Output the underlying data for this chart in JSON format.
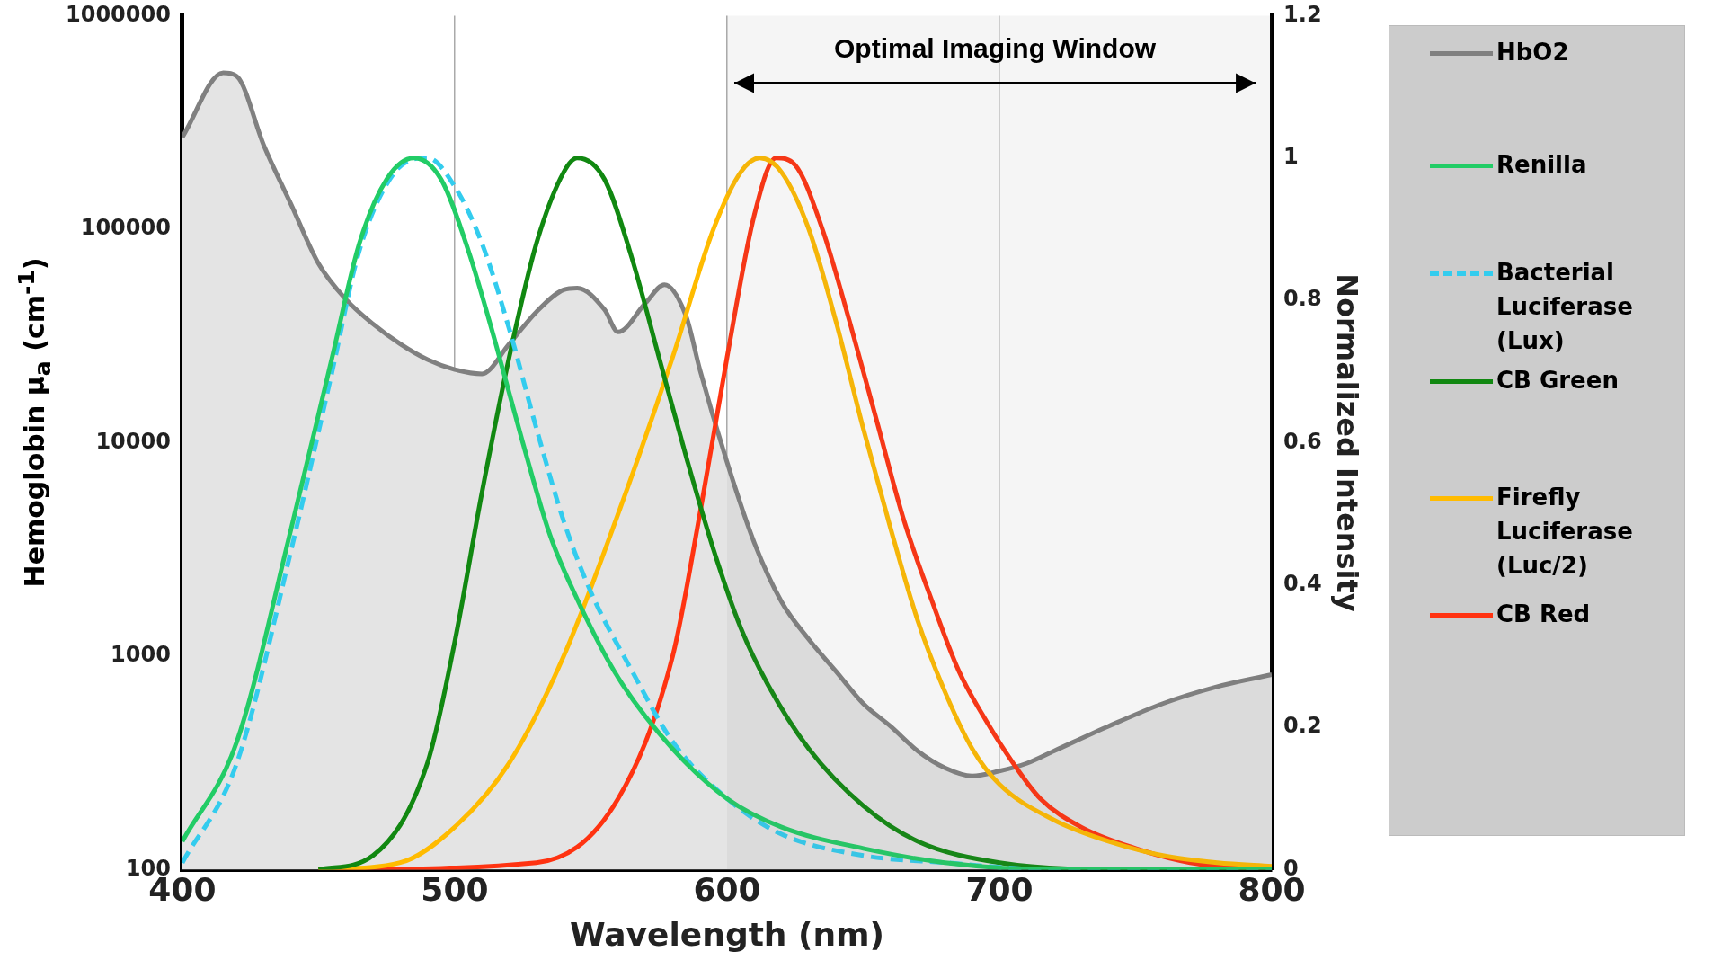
{
  "chart_data": {
    "type": "line",
    "xlabel": "Wavelength (nm)",
    "ylabel": "Hemoglobin μ$_{a}$ (cm$^{-1}$)",
    "y2label": "Normalized Intensity",
    "xlim": [
      400,
      800
    ],
    "xticks": [
      400,
      500,
      600,
      700,
      800
    ],
    "ylim": [
      100,
      1000000
    ],
    "yticks": [
      100,
      1000,
      10000,
      100000,
      1000000
    ],
    "log": "y",
    "y2lim": [
      0,
      1.2
    ],
    "y2ticks": [
      0,
      0.2,
      0.4,
      0.6,
      0.8,
      1,
      1.2
    ],
    "grid": "x",
    "legend": "right",
    "marker": "none",
    "bands": [
      {
        "axis": "x",
        "from": 600,
        "to": 800,
        "label": "Optimal Imaging Window"
      }
    ],
    "series": [
      {
        "name": "HbO2",
        "type": "area",
        "color": "#808080",
        "x": [
          400,
          415,
          420,
          430,
          440,
          450,
          460,
          470,
          480,
          490,
          500,
          510,
          520,
          530,
          540,
          545,
          555,
          560,
          570,
          577,
          585,
          590,
          600,
          610,
          620,
          630,
          640,
          650,
          660,
          670,
          680,
          690,
          700,
          710,
          720,
          740,
          760,
          780,
          800
        ],
        "values": [
          270000,
          540000,
          520000,
          245000,
          130000,
          69000,
          47000,
          36000,
          29000,
          24500,
          22000,
          21000,
          29000,
          41000,
          52000,
          53000,
          42000,
          33000,
          45000,
          55000,
          39000,
          22000,
          8100,
          3400,
          1800,
          1200,
          850,
          600,
          470,
          360,
          300,
          275,
          290,
          315,
          360,
          470,
          600,
          720,
          820
        ]
      },
      {
        "name": "Renilla",
        "axis": "y2",
        "color": "#22cc66",
        "line_style": "solid",
        "x": [
          400,
          420,
          440,
          455,
          465,
          475,
          485,
          495,
          505,
          515,
          525,
          535,
          545,
          560,
          580,
          600,
          620,
          650,
          680,
          720,
          800
        ],
        "values": [
          0.04,
          0.18,
          0.48,
          0.72,
          0.88,
          0.97,
          1,
          0.97,
          0.87,
          0.74,
          0.6,
          0.47,
          0.38,
          0.27,
          0.17,
          0.1,
          0.06,
          0.03,
          0.01,
          0,
          0
        ]
      },
      {
        "name": "Bacterial Luciferase (Lux)",
        "axis": "y2",
        "color": "#33ccee",
        "line_style": "dashed",
        "x": [
          400,
          420,
          440,
          455,
          465,
          478,
          490,
          500,
          510,
          520,
          530,
          540,
          550,
          565,
          580,
          600,
          620,
          650,
          680,
          720,
          800
        ],
        "values": [
          0.01,
          0.15,
          0.45,
          0.7,
          0.87,
          0.98,
          1,
          0.96,
          0.88,
          0.76,
          0.62,
          0.49,
          0.39,
          0.28,
          0.18,
          0.1,
          0.05,
          0.02,
          0.01,
          0,
          0
        ]
      },
      {
        "name": "CB Green",
        "axis": "y2",
        "color": "#118811",
        "line_style": "solid",
        "x": [
          450,
          470,
          490,
          500,
          510,
          520,
          530,
          540,
          545,
          555,
          565,
          575,
          585,
          595,
          605,
          615,
          630,
          650,
          670,
          700,
          750,
          800
        ],
        "values": [
          0,
          0.02,
          0.15,
          0.32,
          0.53,
          0.72,
          0.88,
          0.98,
          1,
          0.97,
          0.86,
          0.72,
          0.58,
          0.45,
          0.34,
          0.26,
          0.17,
          0.09,
          0.04,
          0.01,
          0,
          0
        ]
      },
      {
        "name": "Firefly Luciferase (Luc/2)",
        "axis": "y2",
        "color": "#ffbb00",
        "line_style": "solid",
        "x": [
          450,
          480,
          500,
          520,
          540,
          560,
          580,
          595,
          605,
          612,
          620,
          630,
          640,
          650,
          660,
          670,
          680,
          690,
          700,
          720,
          740,
          760,
          780,
          800
        ],
        "values": [
          0,
          0.01,
          0.06,
          0.15,
          0.3,
          0.5,
          0.72,
          0.9,
          0.98,
          1,
          0.98,
          0.9,
          0.77,
          0.62,
          0.48,
          0.35,
          0.25,
          0.17,
          0.12,
          0.07,
          0.04,
          0.02,
          0.01,
          0.005
        ]
      },
      {
        "name": "CB Red",
        "axis": "y2",
        "color": "#ff3311",
        "line_style": "solid",
        "x": [
          450,
          530,
          560,
          580,
          590,
          600,
          610,
          618,
          625,
          635,
          645,
          655,
          665,
          675,
          685,
          695,
          705,
          715,
          730,
          750,
          770,
          800
        ],
        "values": [
          0,
          0.01,
          0.1,
          0.3,
          0.5,
          0.72,
          0.92,
          1,
          0.99,
          0.9,
          0.77,
          0.63,
          0.49,
          0.38,
          0.28,
          0.21,
          0.15,
          0.1,
          0.06,
          0.03,
          0.01,
          0
        ]
      }
    ]
  }
}
